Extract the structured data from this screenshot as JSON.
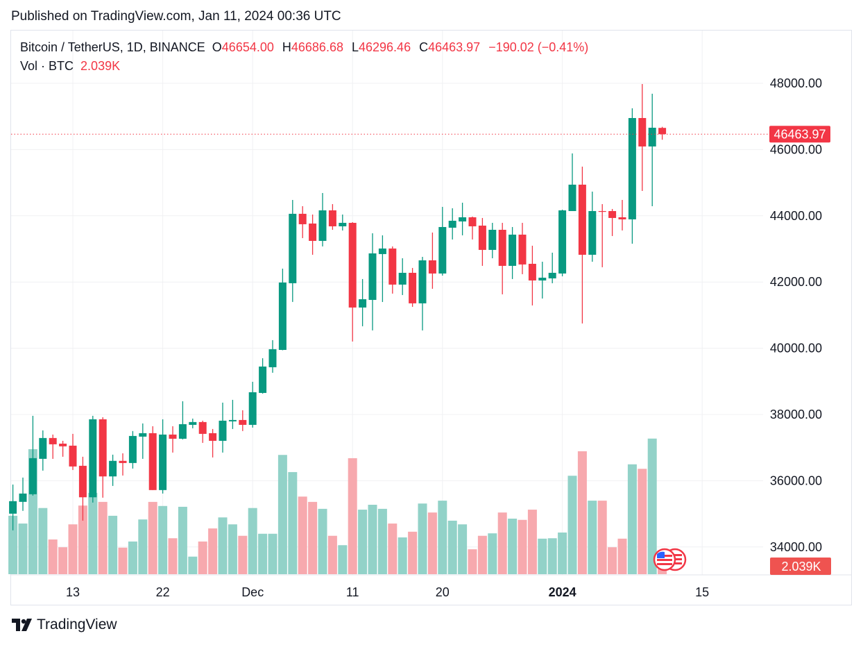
{
  "published": "Published on TradingView.com, Jan 11, 2024 00:36 UTC",
  "legend": {
    "symbol": "Bitcoin / TetherUS, 1D, BINANCE",
    "o_label": "O",
    "o": "46654.00",
    "h_label": "H",
    "h": "46686.68",
    "l_label": "L",
    "l": "46296.46",
    "c_label": "C",
    "c": "46463.97",
    "change": "−190.02 (−0.41%)",
    "vol_label": "Vol · BTC",
    "vol": "2.039K"
  },
  "brand": "TradingView",
  "colors": {
    "up": "#089981",
    "down": "#f23645",
    "up_vol": "#92d2c8",
    "down_vol": "#f7a9ae",
    "grid": "#f0f1f3"
  },
  "chart_data": {
    "type": "candlestick",
    "title": "Bitcoin / TetherUS, 1D, BINANCE",
    "ylabel": "",
    "ylim": [
      33000,
      49000
    ],
    "y_ticks": [
      "48000.00",
      "46000.00",
      "44000.00",
      "42000.00",
      "40000.00",
      "38000.00",
      "36000.00",
      "34000.00"
    ],
    "y_tick_values": [
      48000,
      46000,
      44000,
      42000,
      40000,
      38000,
      36000,
      34000
    ],
    "x_ticks": [
      {
        "label": "13",
        "index": 6,
        "bold": false
      },
      {
        "label": "22",
        "index": 15,
        "bold": false
      },
      {
        "label": "Dec",
        "index": 24,
        "bold": false
      },
      {
        "label": "11",
        "index": 34,
        "bold": false
      },
      {
        "label": "20",
        "index": 43,
        "bold": false
      },
      {
        "label": "2024",
        "index": 55,
        "bold": true
      },
      {
        "label": "15",
        "index": 69,
        "bold": false
      }
    ],
    "last_price_label": "46463.97",
    "last_price": 46463.97,
    "last_volume_label": "2.039K",
    "volume_unit": "K BTC",
    "candles_ohlcv": [
      [
        35005,
        35885,
        34502,
        35383,
        14.3
      ],
      [
        35362,
        36095,
        35090,
        35613,
        12.4
      ],
      [
        35592,
        37960,
        35550,
        36682,
        30.6
      ],
      [
        36661,
        37520,
        36305,
        37290,
        16.2
      ],
      [
        37290,
        37394,
        36660,
        37100,
        8.5
      ],
      [
        37120,
        37205,
        36724,
        37038,
        6.6
      ],
      [
        37059,
        37415,
        36325,
        36430,
        12.2
      ],
      [
        36451,
        36724,
        34795,
        35500,
        16.8
      ],
      [
        35500,
        37960,
        35340,
        37855,
        19.9
      ],
      [
        37855,
        37918,
        35488,
        36130,
        17.7
      ],
      [
        36130,
        36787,
        35843,
        36600,
        14.3
      ],
      [
        36600,
        36828,
        36157,
        36535,
        6.5
      ],
      [
        36535,
        37500,
        36367,
        37352,
        8.0
      ],
      [
        37331,
        37730,
        36661,
        37436,
        13.4
      ],
      [
        37436,
        37646,
        35718,
        35718,
        17.7
      ],
      [
        35718,
        37855,
        35613,
        37394,
        16.7
      ],
      [
        37394,
        37646,
        36850,
        37268,
        8.8
      ],
      [
        37268,
        38400,
        37247,
        37708,
        16.5
      ],
      [
        37687,
        37876,
        37583,
        37772,
        4.3
      ],
      [
        37772,
        37813,
        37143,
        37415,
        8.0
      ],
      [
        37436,
        37562,
        36703,
        37205,
        11.2
      ],
      [
        37205,
        38358,
        36850,
        37813,
        13.9
      ],
      [
        37792,
        38442,
        37562,
        37834,
        12.2
      ],
      [
        37834,
        38128,
        37500,
        37687,
        9.4
      ],
      [
        37687,
        38987,
        37604,
        38672,
        16.2
      ],
      [
        38651,
        39700,
        38630,
        39448,
        9.9
      ],
      [
        39427,
        40245,
        39260,
        39972,
        9.9
      ],
      [
        39950,
        42404,
        39940,
        41985,
        29.2
      ],
      [
        41964,
        44479,
        41400,
        44060,
        25.0
      ],
      [
        44060,
        44290,
        43326,
        43745,
        19.0
      ],
      [
        43766,
        44038,
        42823,
        43242,
        17.7
      ],
      [
        43242,
        44688,
        43075,
        44164,
        16.0
      ],
      [
        44164,
        44353,
        43577,
        43682,
        9.4
      ],
      [
        43682,
        44038,
        43556,
        43787,
        7.1
      ],
      [
        43787,
        43808,
        40203,
        41230,
        28.4
      ],
      [
        41230,
        42090,
        40664,
        41481,
        15.8
      ],
      [
        41460,
        43472,
        40538,
        42865,
        17.0
      ],
      [
        42844,
        43410,
        41397,
        43012,
        16.0
      ],
      [
        43012,
        43075,
        41650,
        41922,
        12.4
      ],
      [
        41922,
        42718,
        41607,
        42278,
        9.0
      ],
      [
        42278,
        42425,
        41251,
        41356,
        10.4
      ],
      [
        41356,
        42760,
        40538,
        42655,
        17.3
      ],
      [
        42655,
        43494,
        41796,
        42257,
        15.1
      ],
      [
        42257,
        44269,
        42194,
        43661,
        18.0
      ],
      [
        43640,
        44227,
        43284,
        43850,
        13.1
      ],
      [
        43829,
        44395,
        43410,
        43955,
        12.2
      ],
      [
        43955,
        43976,
        43284,
        43682,
        6.1
      ],
      [
        43703,
        43934,
        42488,
        42970,
        9.4
      ],
      [
        42970,
        43787,
        42718,
        43577,
        10.0
      ],
      [
        43577,
        43787,
        41628,
        42488,
        15.1
      ],
      [
        42488,
        43661,
        42090,
        43431,
        13.6
      ],
      [
        43431,
        43787,
        42236,
        42530,
        13.3
      ],
      [
        42550,
        43096,
        41293,
        42047,
        15.8
      ],
      [
        42047,
        42613,
        41502,
        42131,
        8.7
      ],
      [
        42110,
        42886,
        41963,
        42278,
        8.8
      ],
      [
        42257,
        44185,
        42173,
        44164,
        10.2
      ],
      [
        44143,
        45883,
        44143,
        44940,
        24.1
      ],
      [
        44940,
        45485,
        40748,
        42823,
        30.1
      ],
      [
        42823,
        44730,
        42613,
        44143,
        18.0
      ],
      [
        44143,
        44353,
        42446,
        44122,
        18.0
      ],
      [
        44143,
        44206,
        43389,
        43934,
        6.6
      ],
      [
        43955,
        44479,
        43557,
        43892,
        8.7
      ],
      [
        43892,
        47245,
        43158,
        46952,
        26.9
      ],
      [
        46952,
        47979,
        44751,
        46093,
        25.8
      ],
      [
        46093,
        47686,
        44290,
        46659,
        33.2
      ],
      [
        46654,
        46686.68,
        46296.46,
        46463.97,
        2.039
      ]
    ]
  }
}
